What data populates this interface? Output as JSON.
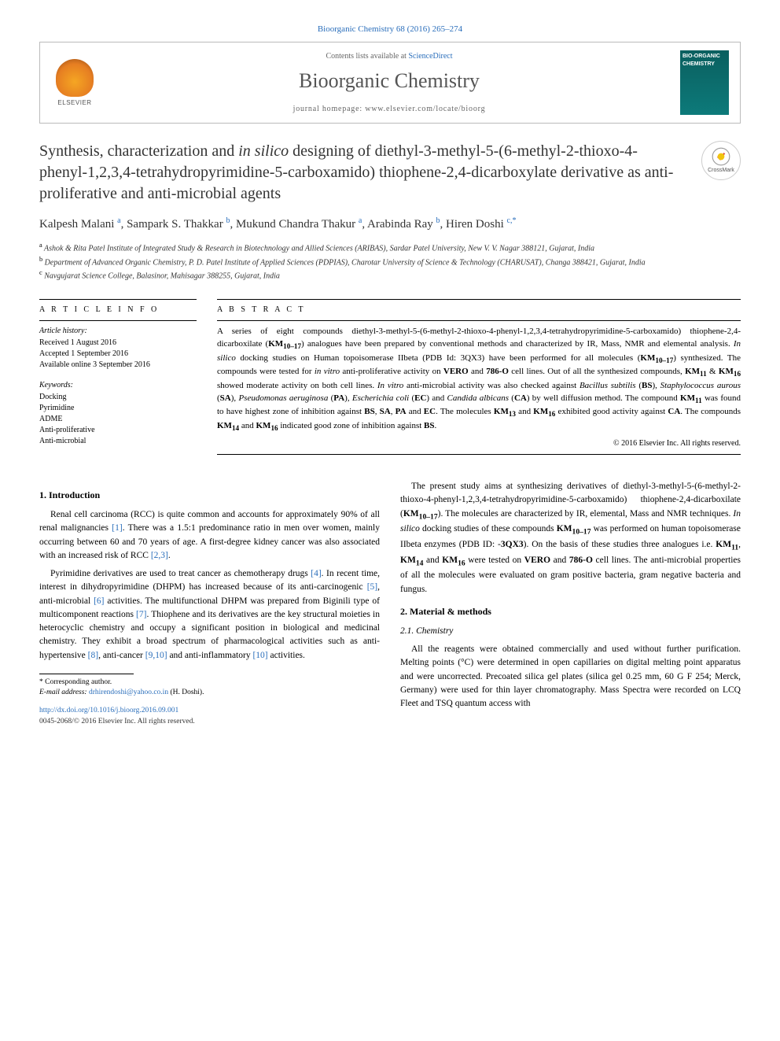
{
  "citation": "Bioorganic Chemistry 68 (2016) 265–274",
  "header": {
    "contents_prefix": "Contents lists available at ",
    "contents_link": "ScienceDirect",
    "journal": "Bioorganic Chemistry",
    "homepage_label": "journal homepage: ",
    "homepage_url": "www.elsevier.com/locate/bioorg",
    "publisher_logo_text": "ELSEVIER",
    "cover_title": "BIO-ORGANIC CHEMISTRY"
  },
  "crossmark_label": "CrossMark",
  "title": "Synthesis, characterization and in silico designing of diethyl-3-methyl-5-(6-methyl-2-thioxo-4-phenyl-1,2,3,4-tetrahydropyrimidine-5-carboxamido) thiophene-2,4-dicarboxylate derivative as anti-proliferative and anti-microbial agents",
  "authors_html": "Kalpesh Malani <sup>a</sup>, Sampark S. Thakkar <sup>b</sup>, Mukund Chandra Thakur <sup>a</sup>, Arabinda Ray <sup>b</sup>, Hiren Doshi <sup>c,*</sup>",
  "affiliations": {
    "a": "Ashok & Rita Patel Institute of Integrated Study & Research in Biotechnology and Allied Sciences (ARIBAS), Sardar Patel University, New V. V. Nagar 388121, Gujarat, India",
    "b": "Department of Advanced Organic Chemistry, P. D. Patel Institute of Applied Sciences (PDPIAS), Charotar University of Science & Technology (CHARUSAT), Changa 388421, Gujarat, India",
    "c": "Navgujarat Science College, Balasinor, Mahisagar 388255, Gujarat, India"
  },
  "article_info": {
    "heading": "A R T I C L E   I N F O",
    "history_label": "Article history:",
    "history": [
      "Received 1 August 2016",
      "Accepted 1 September 2016",
      "Available online 3 September 2016"
    ],
    "keywords_label": "Keywords:",
    "keywords": [
      "Docking",
      "Pyrimidine",
      "ADME",
      "Anti-proliferative",
      "Anti-microbial"
    ]
  },
  "abstract": {
    "heading": "A B S T R A C T",
    "text_html": "A series of eight compounds diethyl-3-methyl-5-(6-methyl-2-thioxo-4-phenyl-1,2,3,4-tetrahydropyrimidine-5-carboxamido) thiophene-2,4-dicarboxilate (<b>KM<sub>10–17</sub></b>) analogues have been prepared by conventional methods and characterized by IR, Mass, NMR and elemental analysis. <i>In silico</i> docking studies on Human topoisomerase IIbeta (PDB Id: 3QX3) have been performed for all molecules (<b>KM<sub>10–17</sub></b>) synthesized. The compounds were tested for <i>in vitro</i> anti-proliferative activity on <b>VERO</b> and <b>786-O</b> cell lines. Out of all the synthesized compounds, <b>KM<sub>11</sub></b> &amp; <b>KM<sub>16</sub></b> showed moderate activity on both cell lines. <i>In vitro</i> anti-microbial activity was also checked against <i>Bacillus subtilis</i> (<b>BS</b>), <i>Staphylococcus aurous</i> (<b>SA</b>), <i>Pseudomonas aeruginosa</i> (<b>PA</b>), <i>Escherichia coli</i> (<b>EC</b>) and <i>Candida albicans</i> (<b>CA</b>) by well diffusion method. The compound <b>KM<sub>11</sub></b> was found to have highest zone of inhibition against <b>BS</b>, <b>SA</b>, <b>PA</b> and <b>EC</b>. The molecules <b>KM<sub>13</sub></b> and <b>KM<sub>16</sub></b> exhibited good activity against <b>CA</b>. The compounds <b>KM<sub>14</sub></b> and <b>KM<sub>16</sub></b> indicated good zone of inhibition against <b>BS</b>.",
    "copyright": "© 2016 Elsevier Inc. All rights reserved."
  },
  "sections": {
    "intro_heading": "1. Introduction",
    "intro_p1_html": "Renal cell carcinoma (RCC) is quite common and accounts for approximately 90% of all renal malignancies <a class=\"ref\" href=\"#\">[1]</a>. There was a 1.5:1 predominance ratio in men over women, mainly occurring between 60 and 70 years of age. A first-degree kidney cancer was also associated with an increased risk of RCC <a class=\"ref\" href=\"#\">[2,3]</a>.",
    "intro_p2_html": "Pyrimidine derivatives are used to treat cancer as chemotherapy drugs <a class=\"ref\" href=\"#\">[4]</a>. In recent time, interest in dihydropyrimidine (DHPM) has increased because of its anti-carcinogenic <a class=\"ref\" href=\"#\">[5]</a>, anti-microbial <a class=\"ref\" href=\"#\">[6]</a> activities. The multifunctional DHPM was prepared from Biginili type of multicomponent reactions <a class=\"ref\" href=\"#\">[7]</a>. Thiophene and its derivatives are the key structural moieties in heterocyclic chemistry and occupy a significant position in biological and medicinal chemistry. They exhibit a broad spectrum of pharmacological activities such as anti-hypertensive <a class=\"ref\" href=\"#\">[8]</a>, anti-cancer <a class=\"ref\" href=\"#\">[9,10]</a> and anti-inflammatory <a class=\"ref\" href=\"#\">[10]</a> activities.",
    "intro_p3_html": "The present study aims at synthesizing derivatives of diethyl-3-methyl-5-(6-methyl-2-thioxo-4-phenyl-1,2,3,4-tetrahydropyrimidine-5-carboxamido) thiophene-2,4-dicarboxilate (<b>KM<sub>10–17</sub></b>). The molecules are characterized by IR, elemental, Mass and NMR techniques. <i>In silico</i> docking studies of these compounds <b>KM<sub>10–17</sub></b> was performed on human topoisomerase IIbeta enzymes (PDB ID: -<b>3QX3</b>). On the basis of these studies three analogues i.e. <b>KM<sub>11</sub></b>, <b>KM<sub>14</sub></b> and <b>KM<sub>16</sub></b> were tested on <b>VERO</b> and <b>786-O</b> cell lines. The anti-microbial properties of all the molecules were evaluated on gram positive bacteria, gram negative bacteria and fungus.",
    "methods_heading": "2. Material & methods",
    "chemistry_heading": "2.1. Chemistry",
    "chemistry_p1": "All the reagents were obtained commercially and used without further purification. Melting points (°C) were determined in open capillaries on digital melting point apparatus and were uncorrected. Precoated silica gel plates (silica gel 0.25 mm, 60 G F 254; Merck, Germany) were used for thin layer chromatography. Mass Spectra were recorded on LCQ Fleet and TSQ quantum access with"
  },
  "footnote": {
    "corr_label": "* Corresponding author.",
    "email_label": "E-mail address: ",
    "email": "drhirendoshi@yahoo.co.in",
    "email_name": " (H. Doshi)."
  },
  "doi": {
    "url": "http://dx.doi.org/10.1016/j.bioorg.2016.09.001",
    "issn_copyright": "0045-2068/© 2016 Elsevier Inc. All rights reserved."
  },
  "colors": {
    "link": "#2a6ebb",
    "text": "#000000",
    "muted": "#666666"
  }
}
